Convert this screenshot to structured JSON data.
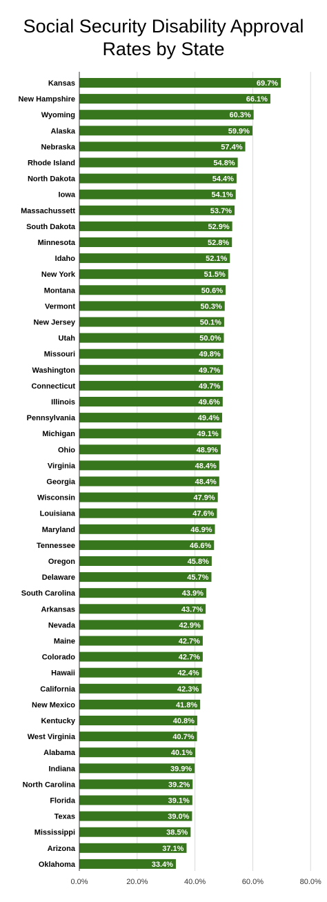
{
  "chart_data": {
    "type": "bar",
    "orientation": "horizontal",
    "title_lines": [
      "Social Security Disability Approval",
      "Rates by State"
    ],
    "xlabel": "",
    "ylabel": "",
    "xlim": [
      0,
      80
    ],
    "x_ticks": [
      "0.0%",
      "20.0%",
      "40.0%",
      "60.0%",
      "80.0%"
    ],
    "x_tick_values": [
      0,
      20,
      40,
      60,
      80
    ],
    "grid": true,
    "legend": "none",
    "bar_color": "#38761d",
    "categories": [
      "Kansas",
      "New Hampshire",
      "Wyoming",
      "Alaska",
      "Nebraska",
      "Rhode Island",
      "North Dakota",
      "Iowa",
      "Massachussett",
      "South Dakota",
      "Minnesota",
      "Idaho",
      "New York",
      "Montana",
      "Vermont",
      "New Jersey",
      "Utah",
      "Missouri",
      "Washington",
      "Connecticut",
      "Illinois",
      "Pennsylvania",
      "Michigan",
      "Ohio",
      "Virginia",
      "Georgia",
      "Wisconsin",
      "Louisiana",
      "Maryland",
      "Tennessee",
      "Oregon",
      "Delaware",
      "South Carolina",
      "Arkansas",
      "Nevada",
      "Maine",
      "Colorado",
      "Hawaii",
      "California",
      "New Mexico",
      "Kentucky",
      "West Virginia",
      "Alabama",
      "Indiana",
      "North Carolina",
      "Florida",
      "Texas",
      "Mississippi",
      "Arizona",
      "Oklahoma"
    ],
    "values": [
      69.7,
      66.1,
      60.3,
      59.9,
      57.4,
      54.8,
      54.4,
      54.1,
      53.7,
      52.9,
      52.8,
      52.1,
      51.5,
      50.6,
      50.3,
      50.1,
      50.0,
      49.8,
      49.7,
      49.7,
      49.6,
      49.4,
      49.1,
      48.9,
      48.4,
      48.4,
      47.9,
      47.6,
      46.9,
      46.6,
      45.8,
      45.7,
      43.9,
      43.7,
      42.9,
      42.7,
      42.7,
      42.4,
      42.3,
      41.8,
      40.8,
      40.7,
      40.1,
      39.9,
      39.2,
      39.1,
      39.0,
      38.5,
      37.1,
      33.4
    ],
    "value_labels": [
      "69.7%",
      "66.1%",
      "60.3%",
      "59.9%",
      "57.4%",
      "54.8%",
      "54.4%",
      "54.1%",
      "53.7%",
      "52.9%",
      "52.8%",
      "52.1%",
      "51.5%",
      "50.6%",
      "50.3%",
      "50.1%",
      "50.0%",
      "49.8%",
      "49.7%",
      "49.7%",
      "49.6%",
      "49.4%",
      "49.1%",
      "48.9%",
      "48.4%",
      "48.4%",
      "47.9%",
      "47.6%",
      "46.9%",
      "46.6%",
      "45.8%",
      "45.7%",
      "43.9%",
      "43.7%",
      "42.9%",
      "42.7%",
      "42.7%",
      "42.4%",
      "42.3%",
      "41.8%",
      "40.8%",
      "40.7%",
      "40.1%",
      "39.9%",
      "39.2%",
      "39.1%",
      "39.0%",
      "38.5%",
      "37.1%",
      "33.4%"
    ]
  }
}
